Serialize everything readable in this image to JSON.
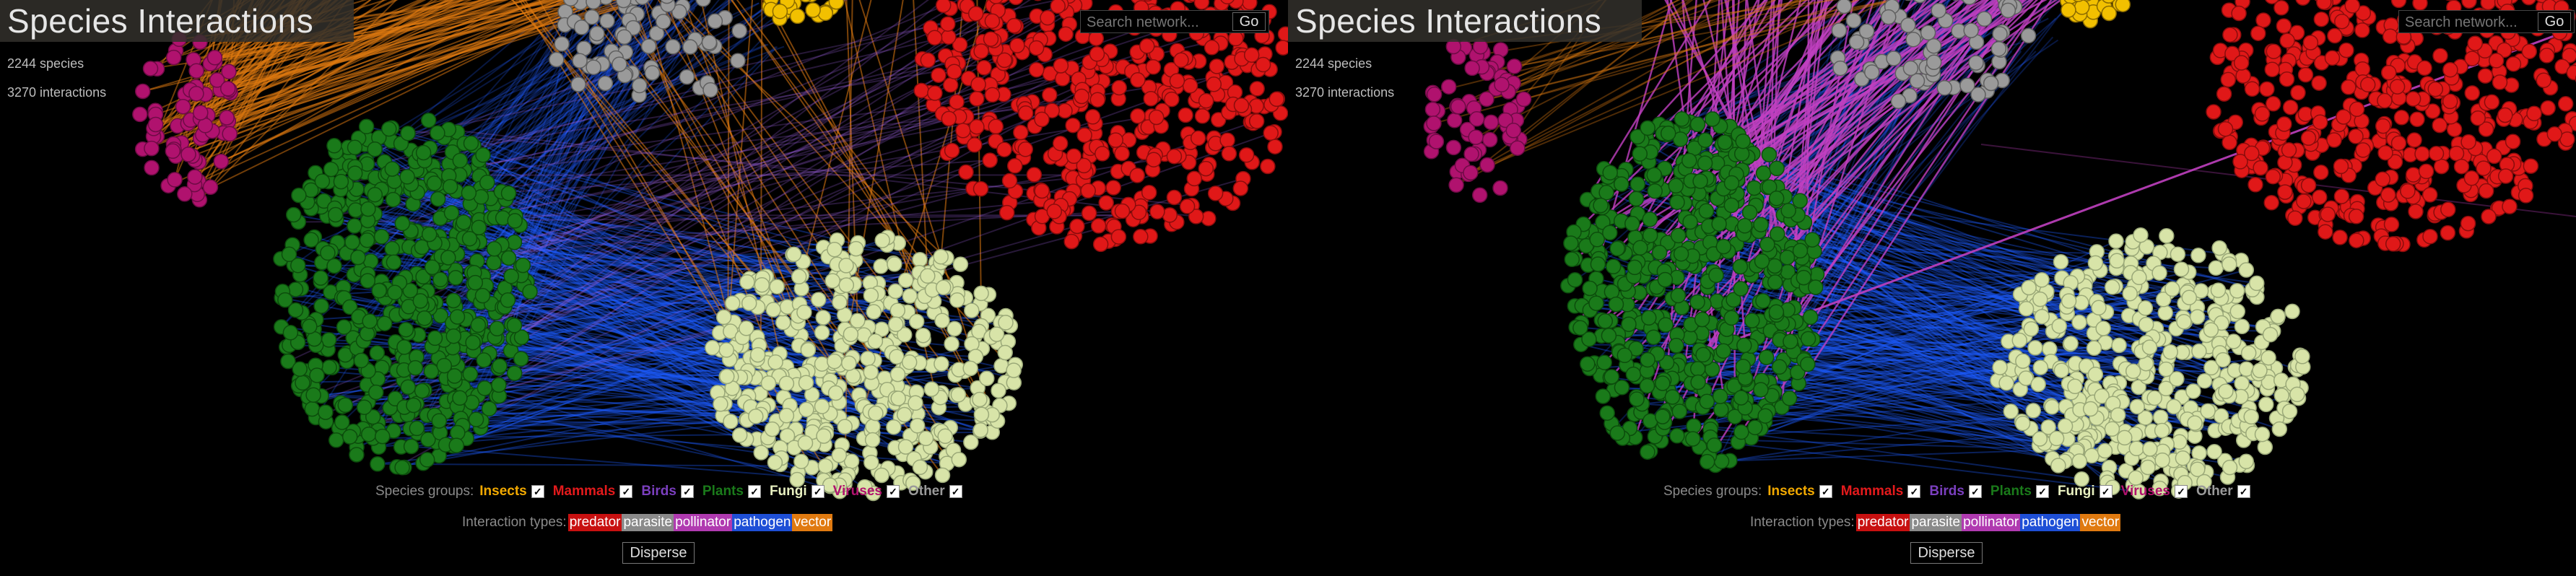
{
  "app": {
    "title": "Species Interactions",
    "species_count": "2244 species",
    "interaction_count": "3270 interactions"
  },
  "search": {
    "placeholder": "Search network...",
    "go_label": "Go"
  },
  "filters": {
    "groups_label": "Species groups:",
    "groups": [
      {
        "label": "Insects",
        "color": "#f2a900",
        "checked": true
      },
      {
        "label": "Mammals",
        "color": "#e31a1c",
        "checked": true
      },
      {
        "label": "Birds",
        "color": "#7b3fbf",
        "checked": true
      },
      {
        "label": "Plants",
        "color": "#1a7a1a",
        "checked": true
      },
      {
        "label": "Fungi",
        "color": "#e8f0c0",
        "checked": true
      },
      {
        "label": "Viruses",
        "color": "#b0126e",
        "checked": true
      },
      {
        "label": "Other",
        "color": "#9a9a9a",
        "checked": true
      }
    ],
    "types_label": "Interaction types:",
    "types": [
      {
        "label": "predator",
        "color": "#c81010"
      },
      {
        "label": "parasite",
        "color": "#8a8a8a"
      },
      {
        "label": "pollinator",
        "color": "#b03ab0"
      },
      {
        "label": "pathogen",
        "color": "#1e4fd6"
      },
      {
        "label": "vector",
        "color": "#e07a10"
      }
    ]
  },
  "controls": {
    "disperse_label": "Disperse"
  },
  "colors": {
    "background": "#000000",
    "plants": "#1a7a1a",
    "fungi": "#d8e4a8",
    "mammals": "#e01818",
    "viruses": "#b0126e",
    "other": "#9a9a9a",
    "insects": "#f2c000",
    "pathogen_edges": "#1e5cff",
    "vector_edges": "#e07a10",
    "pollinator_edges": "#c040c0"
  }
}
